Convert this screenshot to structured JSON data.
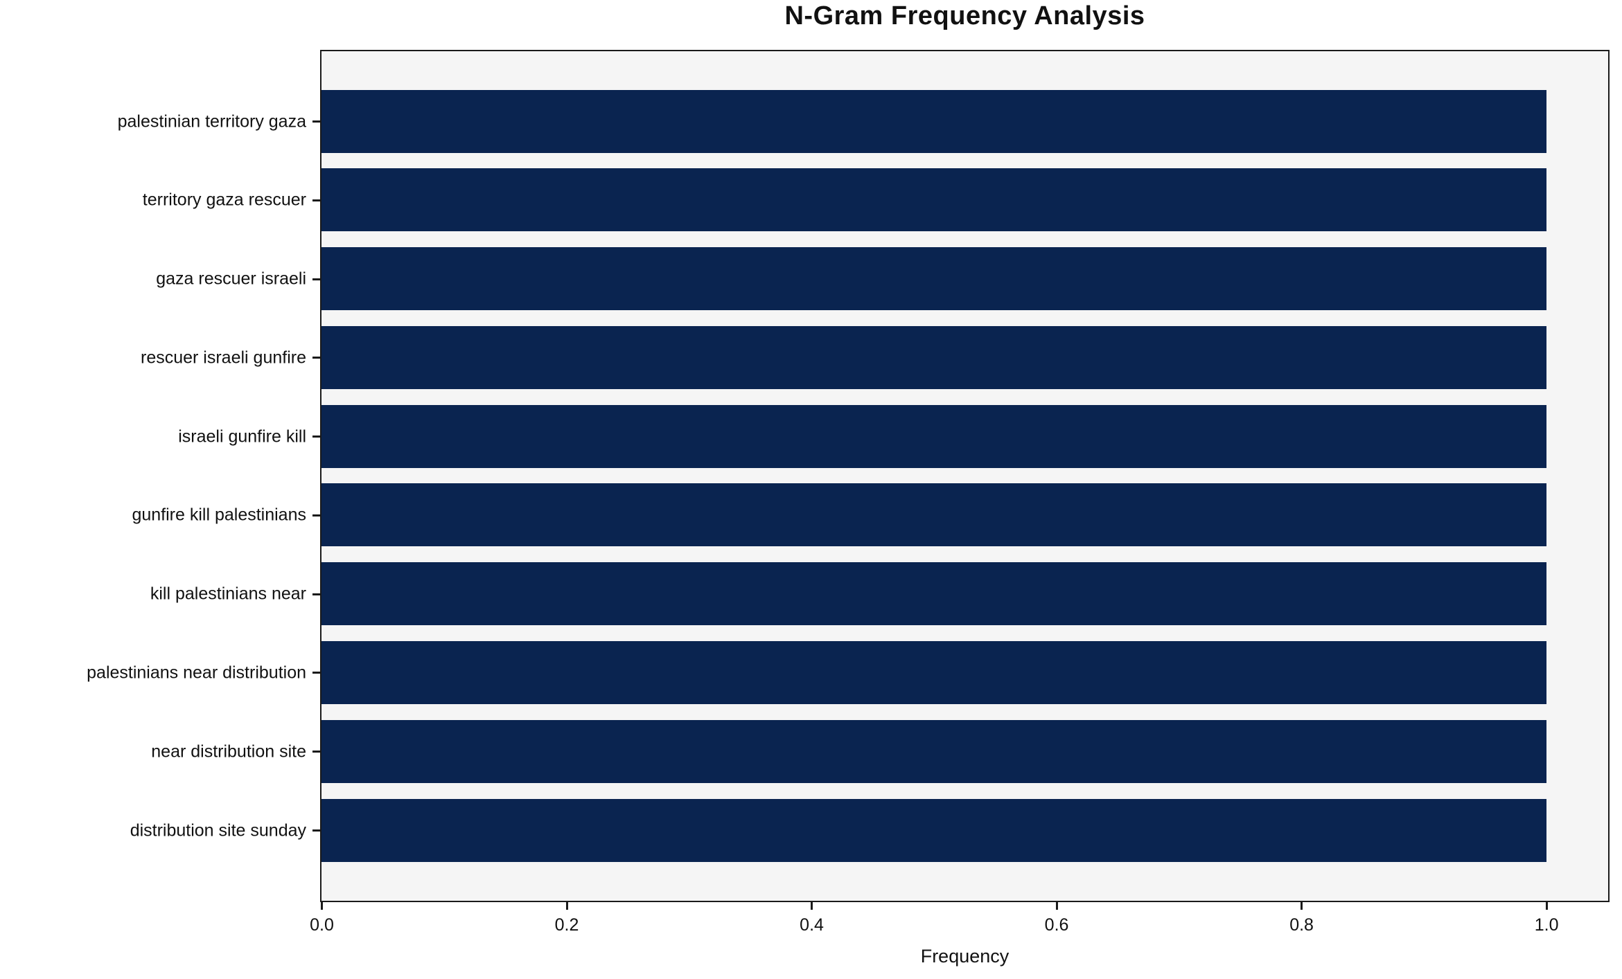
{
  "chart_data": {
    "type": "bar",
    "orientation": "horizontal",
    "title": "N-Gram Frequency Analysis",
    "xlabel": "Frequency",
    "ylabel": "",
    "categories": [
      "palestinian territory gaza",
      "territory gaza rescuer",
      "gaza rescuer israeli",
      "rescuer israeli gunfire",
      "israeli gunfire kill",
      "gunfire kill palestinians",
      "kill palestinians near",
      "palestinians near distribution",
      "near distribution site",
      "distribution site sunday"
    ],
    "values": [
      1.0,
      1.0,
      1.0,
      1.0,
      1.0,
      1.0,
      1.0,
      1.0,
      1.0,
      1.0
    ],
    "xlim": [
      0,
      1.05
    ],
    "xticks": [
      0.0,
      0.2,
      0.4,
      0.6,
      0.8,
      1.0
    ],
    "xtick_labels": [
      "0.0",
      "0.2",
      "0.4",
      "0.6",
      "0.8",
      "1.0"
    ],
    "grid": false,
    "legend": null,
    "bar_color": "#0a2450",
    "plot_background": "#f5f5f5",
    "figure_background": "#ffffff",
    "spine_color": "#1a1a1a"
  }
}
